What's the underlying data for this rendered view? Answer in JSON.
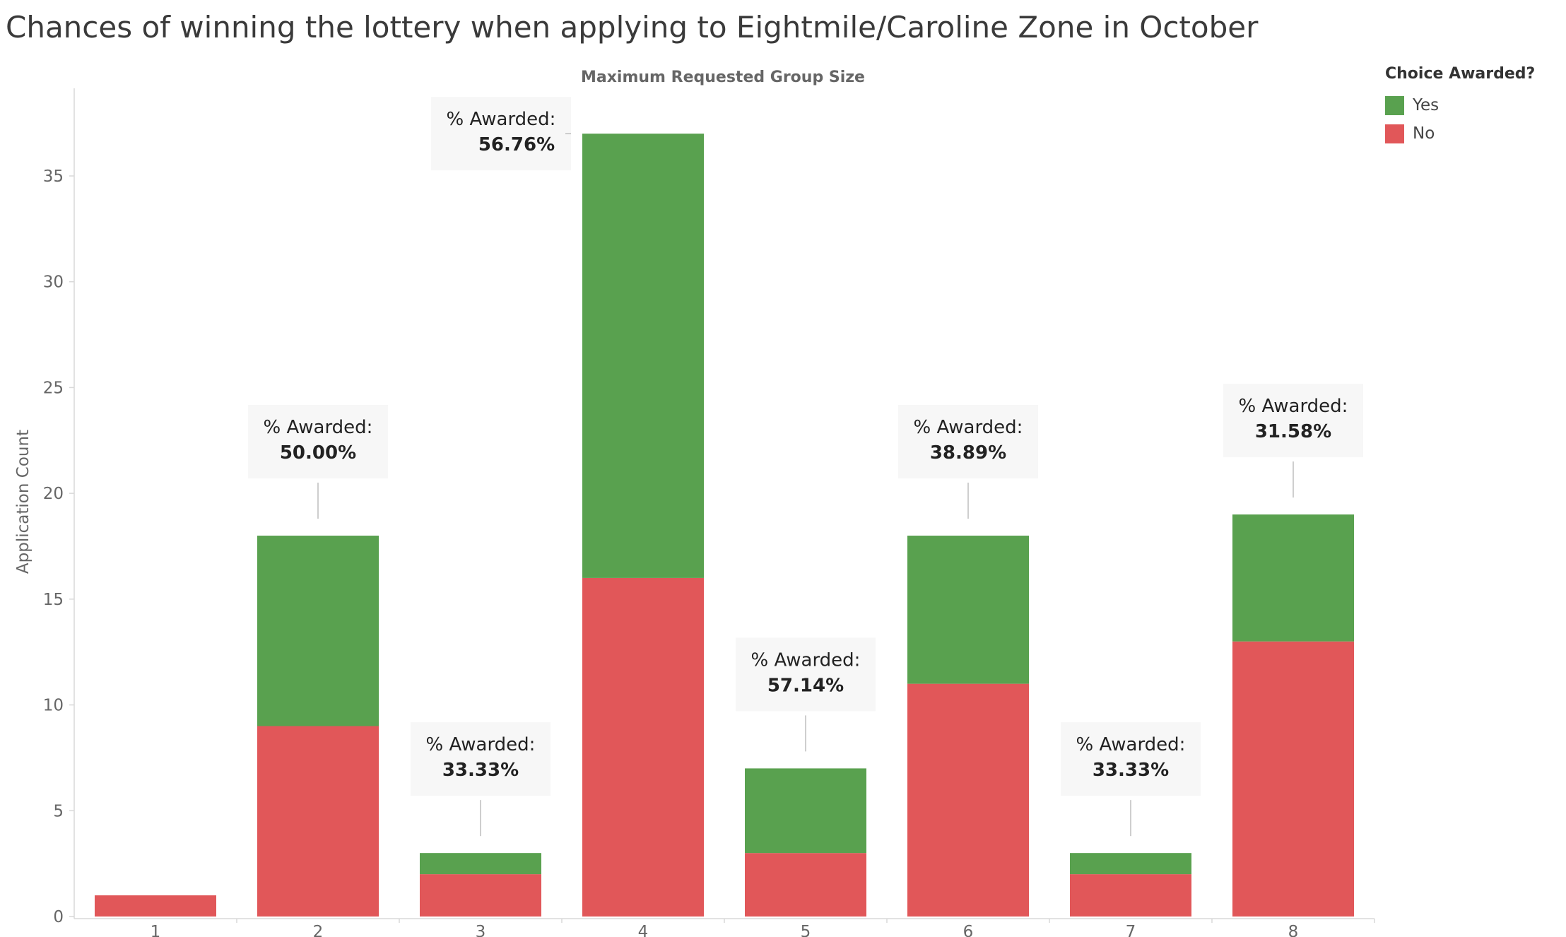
{
  "page": {
    "title": "Chances of winning the lottery when applying to Eightmile/Caroline Zone in October"
  },
  "legend": {
    "title": "Choice Awarded?",
    "items": [
      {
        "label": "Yes",
        "color": "#59a14f"
      },
      {
        "label": "No",
        "color": "#e15759"
      }
    ]
  },
  "chart_data": {
    "type": "bar",
    "stacked": true,
    "title": "Chances of winning the lottery when applying to Eightmile/Caroline Zone in October",
    "xlabel": "Maximum Requested Group Size",
    "ylabel": "Application Count",
    "categories": [
      "1",
      "2",
      "3",
      "4",
      "5",
      "6",
      "7",
      "8"
    ],
    "series": [
      {
        "name": "No",
        "color": "#e15759",
        "values": [
          1,
          9,
          2,
          16,
          3,
          11,
          2,
          13
        ]
      },
      {
        "name": "Yes",
        "color": "#59a14f",
        "values": [
          0,
          9,
          1,
          21,
          4,
          7,
          1,
          6
        ]
      }
    ],
    "ylim": [
      0,
      38
    ],
    "yticks": [
      0,
      5,
      10,
      15,
      20,
      25,
      30,
      35
    ],
    "grid": false,
    "legend_position": "top-right",
    "annotation_label": "% Awarded:",
    "annotations": [
      {
        "category": "2",
        "value": "50.00%"
      },
      {
        "category": "3",
        "value": "33.33%"
      },
      {
        "category": "4",
        "value": "56.76%"
      },
      {
        "category": "5",
        "value": "57.14%"
      },
      {
        "category": "6",
        "value": "38.89%"
      },
      {
        "category": "7",
        "value": "33.33%"
      },
      {
        "category": "8",
        "value": "31.58%"
      }
    ]
  }
}
